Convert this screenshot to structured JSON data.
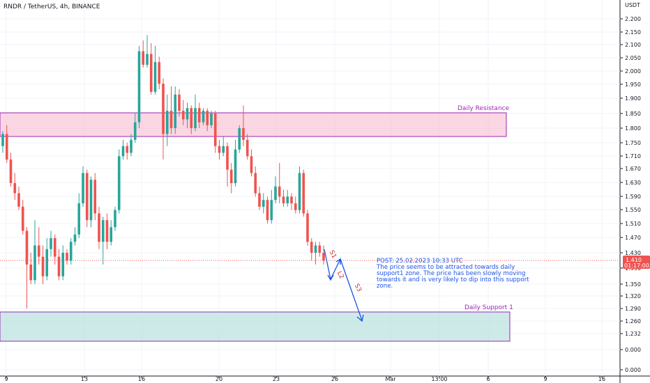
{
  "header": {
    "symbol": "RNDR / TetherUS, 4h, BINANCE"
  },
  "colors": {
    "up": "#26a69a",
    "down": "#ef5350",
    "resistance_fill": "#f8bbd0",
    "resistance_border": "#9c27b0",
    "support_fill": "#b2dfdb",
    "support_border": "#9c27b0",
    "annotation": "#1e53e5",
    "wave_label": "#d32f2f",
    "price_badge": "#ef5350"
  },
  "chart_data": {
    "type": "candlestick",
    "y_axis_label": "USDT",
    "y_ticks": [
      "2.200",
      "2.150",
      "2.100",
      "2.050",
      "2.000",
      "1.950",
      "1.900",
      "1.850",
      "1.800",
      "1.750",
      "1.710",
      "1.670",
      "1.630",
      "1.590",
      "1.550",
      "1.510",
      "1.470",
      "1.430",
      "1.390",
      "1.350",
      "1.320",
      "1.290",
      "1.260",
      "1.232",
      "0.000",
      "0.000"
    ],
    "x_ticks": [
      "9",
      "13",
      "16",
      "20",
      "23",
      "26",
      "Mar",
      "13:00",
      "6",
      "9",
      "16"
    ],
    "candles": [
      [
        1.74,
        1.78,
        1.72,
        1.79
      ],
      [
        1.78,
        1.7,
        1.69,
        1.81
      ],
      [
        1.7,
        1.63,
        1.62,
        1.72
      ],
      [
        1.63,
        1.6,
        1.58,
        1.66
      ],
      [
        1.6,
        1.56,
        1.55,
        1.62
      ],
      [
        1.56,
        1.49,
        1.48,
        1.58
      ],
      [
        1.49,
        1.4,
        1.29,
        1.5
      ],
      [
        1.4,
        1.36,
        1.35,
        1.43
      ],
      [
        1.36,
        1.45,
        1.35,
        1.52
      ],
      [
        1.45,
        1.42,
        1.4,
        1.5
      ],
      [
        1.42,
        1.37,
        1.35,
        1.45
      ],
      [
        1.37,
        1.44,
        1.36,
        1.47
      ],
      [
        1.44,
        1.47,
        1.42,
        1.49
      ],
      [
        1.47,
        1.42,
        1.4,
        1.48
      ],
      [
        1.42,
        1.37,
        1.36,
        1.44
      ],
      [
        1.37,
        1.43,
        1.36,
        1.45
      ],
      [
        1.43,
        1.41,
        1.4,
        1.44
      ],
      [
        1.41,
        1.46,
        1.4,
        1.47
      ],
      [
        1.46,
        1.48,
        1.45,
        1.5
      ],
      [
        1.48,
        1.57,
        1.47,
        1.6
      ],
      [
        1.57,
        1.66,
        1.56,
        1.68
      ],
      [
        1.66,
        1.52,
        1.5,
        1.67
      ],
      [
        1.52,
        1.64,
        1.5,
        1.65
      ],
      [
        1.64,
        1.54,
        1.52,
        1.66
      ],
      [
        1.54,
        1.46,
        1.44,
        1.56
      ],
      [
        1.46,
        1.52,
        1.4,
        1.53
      ],
      [
        1.52,
        1.46,
        1.44,
        1.54
      ],
      [
        1.46,
        1.5,
        1.45,
        1.52
      ],
      [
        1.5,
        1.55,
        1.49,
        1.56
      ],
      [
        1.55,
        1.71,
        1.54,
        1.73
      ],
      [
        1.71,
        1.74,
        1.7,
        1.76
      ],
      [
        1.74,
        1.72,
        1.7,
        1.75
      ],
      [
        1.72,
        1.76,
        1.71,
        1.78
      ],
      [
        1.76,
        1.82,
        1.75,
        1.85
      ],
      [
        1.82,
        2.08,
        1.8,
        2.1
      ],
      [
        2.08,
        2.03,
        2.02,
        2.12
      ],
      [
        2.03,
        2.07,
        2.02,
        2.14
      ],
      [
        2.07,
        1.93,
        1.92,
        2.11
      ],
      [
        1.93,
        2.04,
        1.92,
        2.1
      ],
      [
        2.04,
        1.96,
        1.94,
        2.06
      ],
      [
        1.96,
        1.78,
        1.7,
        1.98
      ],
      [
        1.78,
        1.86,
        1.74,
        1.92
      ],
      [
        1.86,
        1.8,
        1.78,
        1.95
      ],
      [
        1.8,
        1.92,
        1.78,
        1.95
      ],
      [
        1.92,
        1.86,
        1.84,
        1.94
      ],
      [
        1.86,
        1.83,
        1.81,
        1.9
      ],
      [
        1.83,
        1.87,
        1.8,
        1.89
      ],
      [
        1.87,
        1.8,
        1.78,
        1.88
      ],
      [
        1.8,
        1.87,
        1.79,
        1.92
      ],
      [
        1.87,
        1.82,
        1.8,
        1.89
      ],
      [
        1.82,
        1.86,
        1.81,
        1.87
      ],
      [
        1.86,
        1.81,
        1.79,
        1.87
      ],
      [
        1.81,
        1.85,
        1.8,
        1.86
      ],
      [
        1.85,
        1.74,
        1.72,
        1.86
      ],
      [
        1.74,
        1.72,
        1.7,
        1.76
      ],
      [
        1.72,
        1.74,
        1.71,
        1.77
      ],
      [
        1.74,
        1.67,
        1.62,
        1.75
      ],
      [
        1.67,
        1.63,
        1.6,
        1.69
      ],
      [
        1.63,
        1.73,
        1.62,
        1.76
      ],
      [
        1.73,
        1.8,
        1.72,
        1.81
      ],
      [
        1.8,
        1.76,
        1.74,
        1.88
      ],
      [
        1.76,
        1.71,
        1.7,
        1.78
      ],
      [
        1.71,
        1.66,
        1.65,
        1.73
      ],
      [
        1.66,
        1.6,
        1.59,
        1.68
      ],
      [
        1.6,
        1.56,
        1.55,
        1.62
      ],
      [
        1.56,
        1.58,
        1.54,
        1.6
      ],
      [
        1.58,
        1.52,
        1.51,
        1.59
      ],
      [
        1.52,
        1.58,
        1.51,
        1.61
      ],
      [
        1.58,
        1.62,
        1.57,
        1.65
      ],
      [
        1.62,
        1.59,
        1.57,
        1.69
      ],
      [
        1.59,
        1.57,
        1.56,
        1.61
      ],
      [
        1.57,
        1.59,
        1.56,
        1.61
      ],
      [
        1.59,
        1.57,
        1.55,
        1.6
      ],
      [
        1.57,
        1.55,
        1.54,
        1.59
      ],
      [
        1.55,
        1.66,
        1.54,
        1.68
      ],
      [
        1.66,
        1.54,
        1.53,
        1.67
      ],
      [
        1.54,
        1.46,
        1.45,
        1.55
      ],
      [
        1.46,
        1.43,
        1.41,
        1.47
      ],
      [
        1.43,
        1.45,
        1.4,
        1.46
      ],
      [
        1.45,
        1.43,
        1.42,
        1.46
      ],
      [
        1.43,
        1.41,
        1.4,
        1.45
      ]
    ],
    "current_price": "1.410",
    "countdown": "01:17:00",
    "zones": [
      {
        "name": "Daily Resistance",
        "from": 1.764,
        "to": 1.856
      },
      {
        "name": "Daily Support 1",
        "from": 1.224,
        "to": 1.279
      }
    ],
    "wave_labels": [
      "S1",
      "L2",
      "S3"
    ],
    "annotation": [
      "POST: 25.02.2023 10:33 UTC",
      "The price seems to be attracted towards daily",
      "support1 zone. The price has been slowly moving",
      "towards it and is very likely to dip into this support",
      "zone."
    ]
  }
}
